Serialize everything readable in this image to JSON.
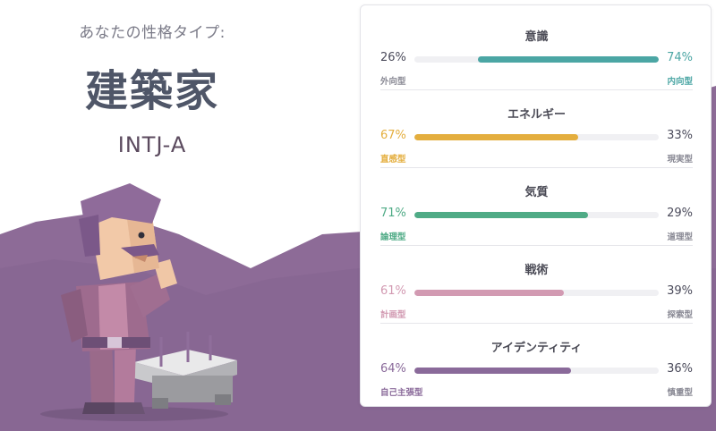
{
  "header": {
    "subtitle": "あなたの性格タイプ:",
    "type_name": "建築家",
    "type_code": "INTJ-A"
  },
  "colors": {
    "hill": "#8d6b97",
    "mind": "#4ba6a4",
    "energy": "#e4ae3e",
    "nature": "#4fab86",
    "tactics": "#d29ab2",
    "identity": "#8a6a9a"
  },
  "traits": [
    {
      "title": "意識",
      "left_pct": "26%",
      "right_pct": "74%",
      "left_label": "外向型",
      "right_label": "内向型",
      "dominant": "right",
      "value": 0.74,
      "color_key": "mind"
    },
    {
      "title": "エネルギー",
      "left_pct": "67%",
      "right_pct": "33%",
      "left_label": "直感型",
      "right_label": "現実型",
      "dominant": "left",
      "value": 0.67,
      "color_key": "energy"
    },
    {
      "title": "気質",
      "left_pct": "71%",
      "right_pct": "29%",
      "left_label": "論理型",
      "right_label": "道理型",
      "dominant": "left",
      "value": 0.71,
      "color_key": "nature"
    },
    {
      "title": "戦術",
      "left_pct": "61%",
      "right_pct": "39%",
      "left_label": "計画型",
      "right_label": "探索型",
      "dominant": "left",
      "value": 0.61,
      "color_key": "tactics"
    },
    {
      "title": "アイデンティティ",
      "left_pct": "64%",
      "right_pct": "36%",
      "left_label": "自己主張型",
      "right_label": "慎重型",
      "dominant": "left",
      "value": 0.64,
      "color_key": "identity"
    }
  ]
}
